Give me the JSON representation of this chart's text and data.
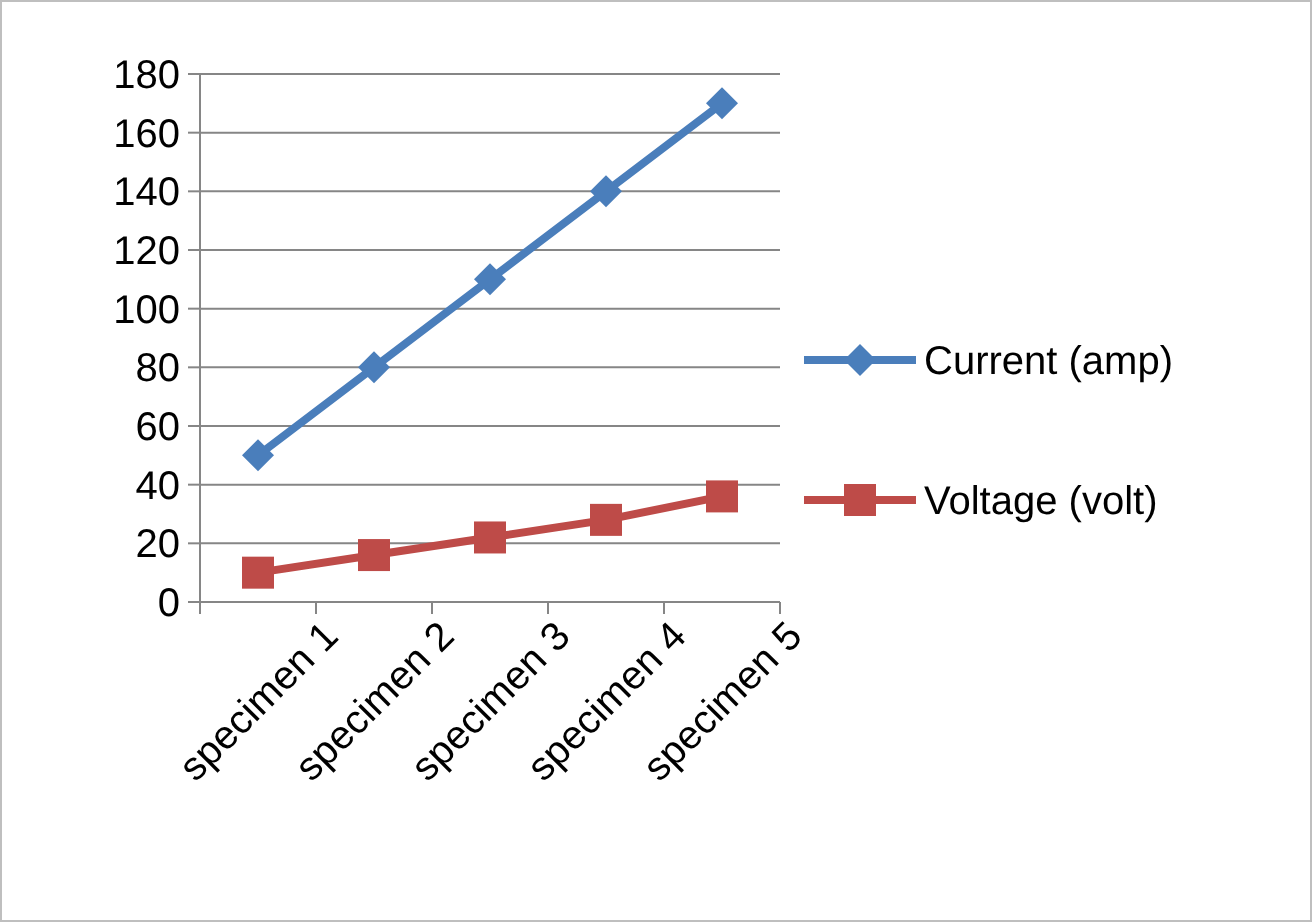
{
  "chart_data": {
    "type": "line",
    "categories": [
      "specimen 1",
      "specimen 2",
      "specimen 3",
      "specimen 4",
      "specimen 5"
    ],
    "series": [
      {
        "name": "Current (amp)",
        "color": "#4a7ebb",
        "marker": "diamond",
        "values": [
          50,
          80,
          110,
          140,
          170
        ]
      },
      {
        "name": "Voltage (volt)",
        "color": "#be4b48",
        "marker": "square",
        "values": [
          10,
          16,
          22,
          28,
          36
        ]
      }
    ],
    "ylim": [
      0,
      180
    ],
    "yticks": [
      0,
      20,
      40,
      60,
      80,
      100,
      120,
      140,
      160,
      180
    ],
    "grid": "y",
    "legend": "right"
  }
}
